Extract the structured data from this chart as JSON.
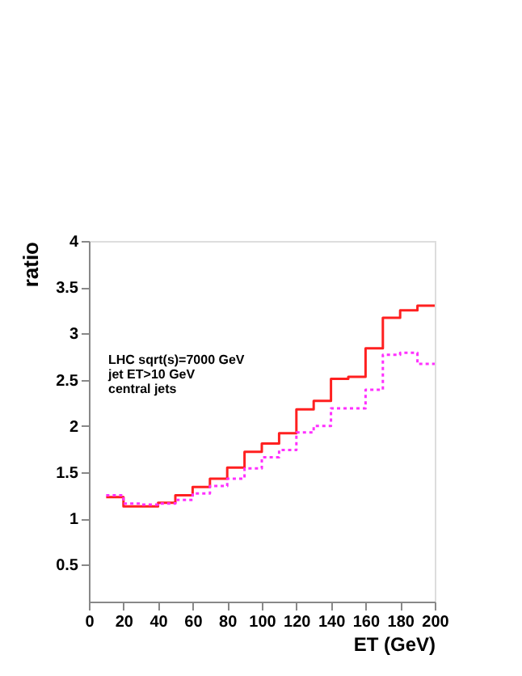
{
  "chart_data": {
    "type": "histogram",
    "xlabel": "ET (GeV)",
    "ylabel": "ratio",
    "bins": [
      10,
      20,
      30,
      40,
      50,
      60,
      70,
      80,
      90,
      100,
      110,
      120,
      130,
      140,
      150,
      160,
      170,
      180,
      190,
      200
    ],
    "series": [
      {
        "color": "#ff2020",
        "line_style": "solid",
        "values": [
          1.23,
          1.13,
          1.13,
          1.17,
          1.25,
          1.34,
          1.43,
          1.55,
          1.72,
          1.81,
          1.92,
          2.18,
          2.27,
          2.51,
          2.53,
          2.84,
          3.17,
          3.25,
          3.3
        ]
      },
      {
        "color": "#ff30ff",
        "line_style": "dotted",
        "values": [
          1.25,
          1.16,
          1.15,
          1.16,
          1.2,
          1.27,
          1.35,
          1.43,
          1.54,
          1.66,
          1.74,
          1.93,
          2.0,
          2.19,
          2.19,
          2.39,
          2.77,
          2.79,
          2.67
        ]
      }
    ],
    "annotations": [
      "LHC sqrt(s)=7000 GeV",
      "jet  ET>10 GeV",
      "central jets"
    ],
    "xlim": [
      0,
      200
    ],
    "xticks": [
      0,
      20,
      40,
      60,
      80,
      100,
      120,
      140,
      160,
      180,
      200
    ],
    "ylim": [
      0.1,
      4
    ],
    "yticks": [
      0.5,
      1,
      1.5,
      2,
      2.5,
      3,
      3.5,
      4
    ],
    "grid": false
  }
}
